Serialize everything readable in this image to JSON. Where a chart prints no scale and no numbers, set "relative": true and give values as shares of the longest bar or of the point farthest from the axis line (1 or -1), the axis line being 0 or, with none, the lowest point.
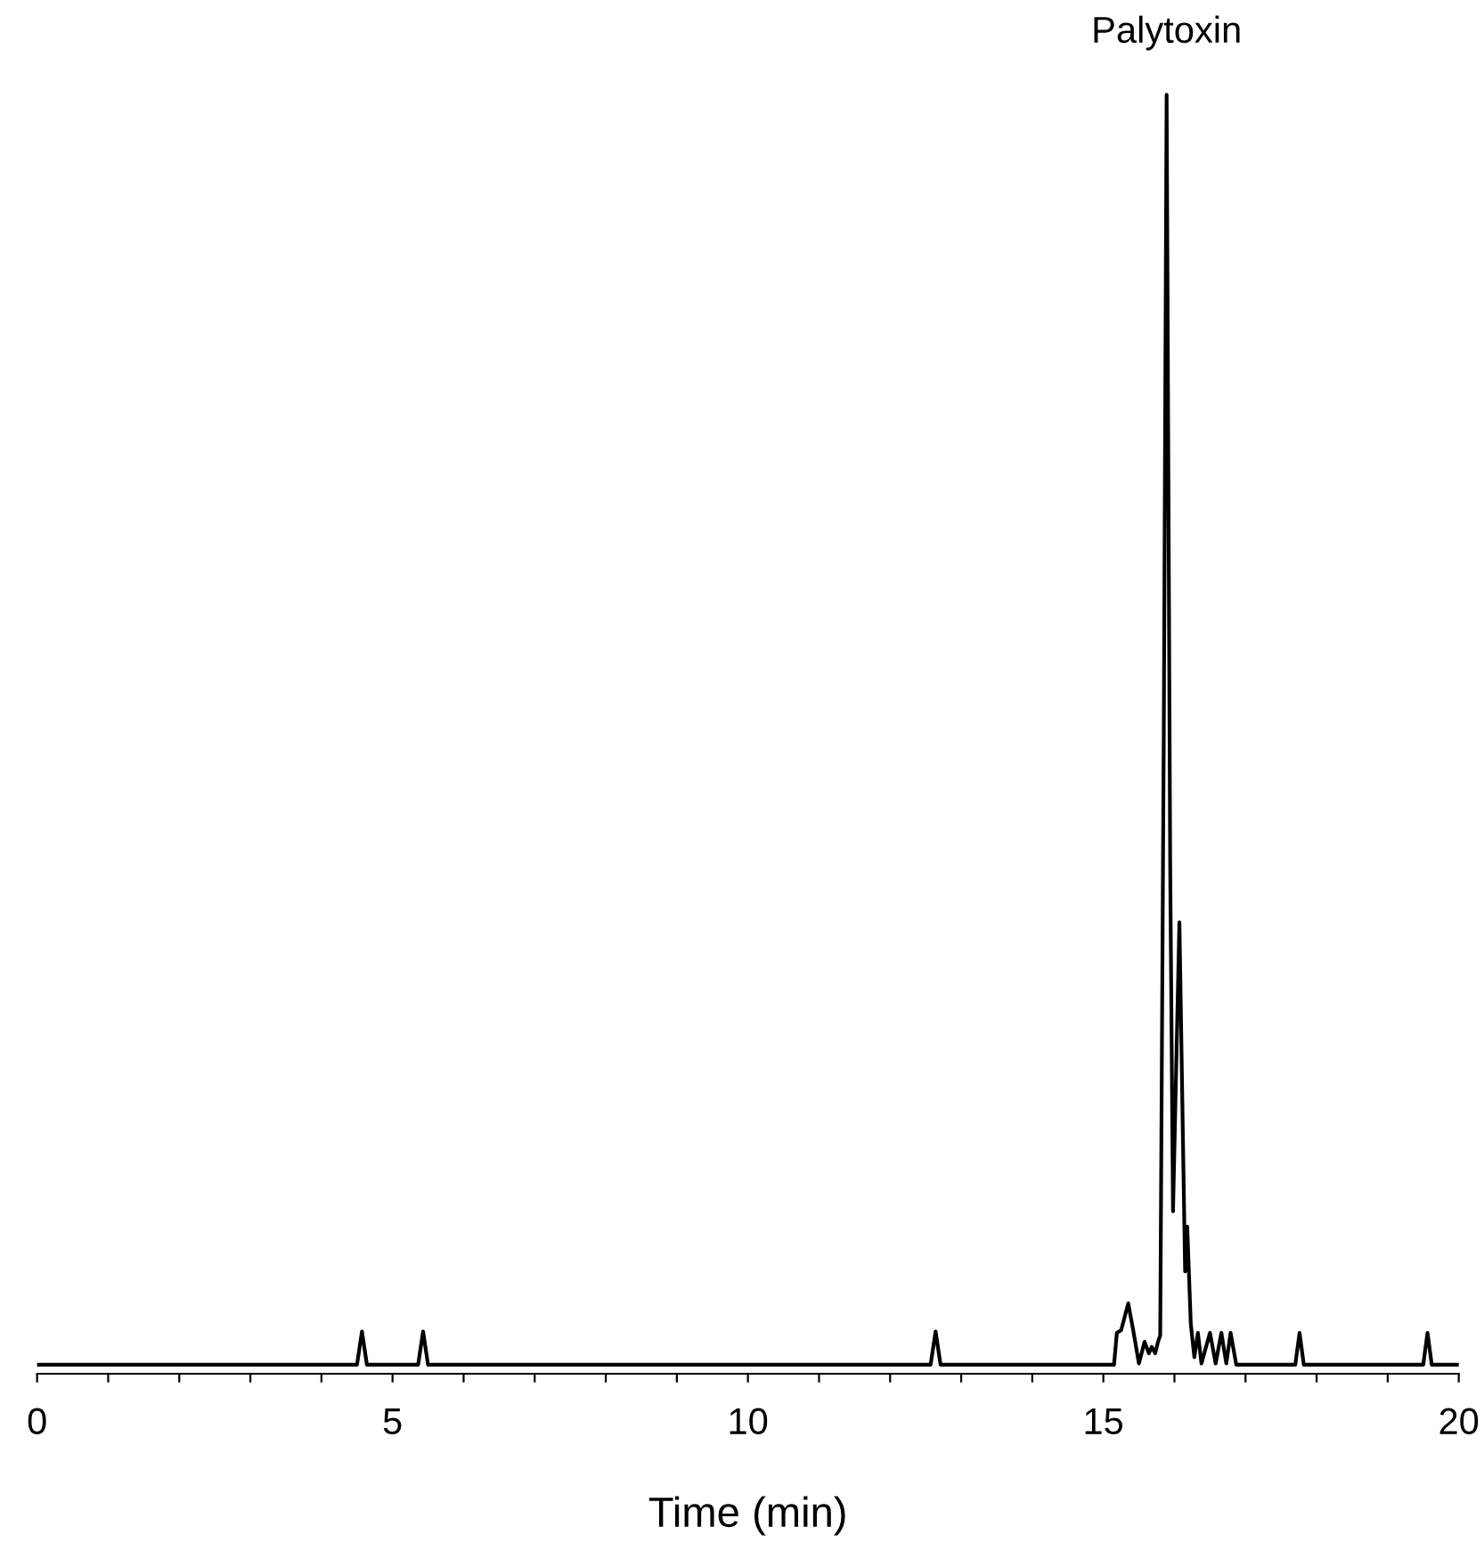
{
  "chart_data": {
    "type": "line",
    "relative": true,
    "xlabel": "Time (min)",
    "xlim": [
      0,
      20
    ],
    "xticks": [
      0,
      {
        "value": 1,
        "label": null
      },
      {
        "value": 2,
        "label": null
      },
      {
        "value": 3,
        "label": null
      },
      {
        "value": 4,
        "label": null
      },
      5,
      {
        "value": 6,
        "label": null
      },
      {
        "value": 7,
        "label": null
      },
      {
        "value": 8,
        "label": null
      },
      {
        "value": 9,
        "label": null
      },
      10,
      {
        "value": 11,
        "label": null
      },
      {
        "value": 12,
        "label": null
      },
      {
        "value": 13,
        "label": null
      },
      {
        "value": 14,
        "label": null
      },
      15,
      {
        "value": 16,
        "label": null
      },
      {
        "value": 17,
        "label": null
      },
      {
        "value": 18,
        "label": null
      },
      {
        "value": 19,
        "label": null
      },
      20
    ],
    "annotations": [
      {
        "text": "Palytoxin",
        "x": 15.89,
        "y": 1
      }
    ],
    "grid": false,
    "legend": false,
    "marker": "none",
    "line_style": "solid",
    "series": [
      {
        "color": "#000000",
        "x": [
          0,
          4.5,
          4.57,
          4.64,
          5.36,
          5.43,
          5.5,
          12.57,
          12.64,
          12.71,
          15.15,
          15.19,
          15.25,
          15.35,
          15.42,
          15.5,
          15.58,
          15.64,
          15.68,
          15.73,
          15.77,
          15.8,
          15.85,
          15.89,
          15.94,
          15.98,
          16.07,
          16.15,
          16.18,
          16.23,
          16.28,
          16.33,
          16.38,
          16.5,
          16.58,
          16.66,
          16.73,
          16.79,
          16.87,
          17.7,
          17.76,
          17.82,
          19.5,
          19.56,
          19.62,
          20
        ],
        "values": [
          0.007,
          0.007,
          0.033,
          0.007,
          0.007,
          0.033,
          0.007,
          0.007,
          0.033,
          0.007,
          0.007,
          0.032,
          0.034,
          0.055,
          0.034,
          0.008,
          0.025,
          0.016,
          0.021,
          0.016,
          0.025,
          0.03,
          0.5,
          1,
          0.4,
          0.127,
          0.353,
          0.08,
          0.115,
          0.039,
          0.013,
          0.032,
          0.008,
          0.032,
          0.008,
          0.032,
          0.008,
          0.032,
          0.007,
          0.007,
          0.032,
          0.007,
          0.007,
          0.032,
          0.007,
          0.007
        ]
      }
    ]
  }
}
